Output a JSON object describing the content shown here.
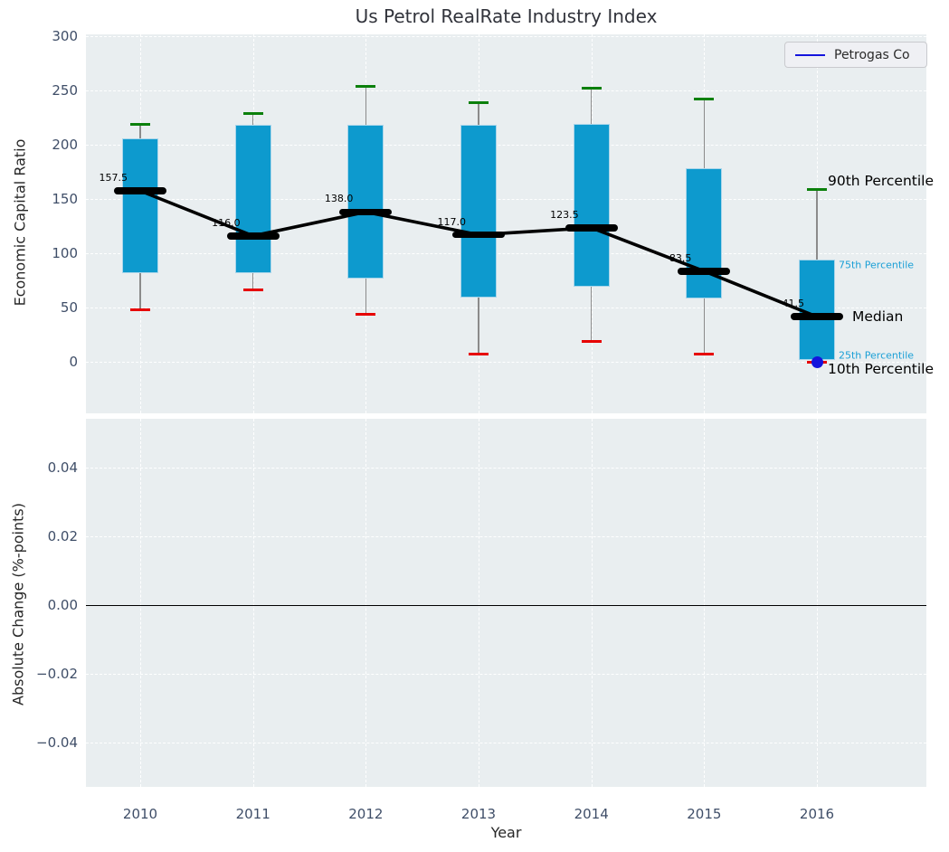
{
  "title": "Us Petrol RealRate Industry Index",
  "legend": {
    "label": "Petrogas Co"
  },
  "top_axis": {
    "ylabel": "Economic Capital Ratio",
    "ytick_labels": [
      "0",
      "50",
      "100",
      "150",
      "200",
      "250",
      "300"
    ],
    "yticks": [
      0,
      50,
      100,
      150,
      200,
      250,
      300
    ]
  },
  "bottom_axis": {
    "ylabel": "Absolute Change (%-points)",
    "xlabel": "Year",
    "ytick_labels": [
      "0.04",
      "0.02",
      "0.00",
      "−0.02",
      "−0.04"
    ],
    "yticks": [
      0.04,
      0.02,
      0,
      -0.02,
      -0.04
    ]
  },
  "annotations": {
    "p90": "90th Percentile",
    "p75": "75th Percentile",
    "median": "Median",
    "p25": "25th Percentile",
    "p10": "10th Percentile"
  },
  "chart_data": {
    "type": "boxplot-timeseries",
    "title": "Us Petrol RealRate Industry Index",
    "xlabel": "Year",
    "ylabel_top": "Economic Capital Ratio",
    "ylabel_bottom": "Absolute Change (%-points)",
    "categories": [
      "2010",
      "2011",
      "2012",
      "2013",
      "2014",
      "2015",
      "2016"
    ],
    "series": [
      {
        "name": "90th Percentile",
        "values": [
          219,
          229,
          254,
          239,
          252,
          242,
          159
        ]
      },
      {
        "name": "75th Percentile",
        "values": [
          206,
          218,
          218,
          218,
          219,
          178,
          94
        ]
      },
      {
        "name": "Median",
        "values": [
          157.5,
          116,
          138,
          117,
          123.5,
          83.5,
          41.5
        ]
      },
      {
        "name": "25th Percentile",
        "values": [
          82,
          82,
          77,
          59,
          69,
          58,
          2
        ]
      },
      {
        "name": "10th Percentile",
        "values": [
          48,
          66,
          44,
          7,
          19,
          7,
          0
        ]
      }
    ],
    "median_labels": [
      "157.5",
      "116.0",
      "138.0",
      "117.0",
      "123.5",
      "83.5",
      "41.5"
    ],
    "petrogas_point": {
      "category": "2016",
      "value": 0,
      "series": "Petrogas Co"
    },
    "top_ylim": [
      -48,
      302
    ],
    "bottom_ylim": [
      -0.054,
      0.054
    ],
    "bottom_panel": "empty, zero reference line only",
    "grid": true,
    "legend_position": "upper right"
  },
  "colors": {
    "box_fill": "#0d9ace",
    "box_edge": "#a9d5ea",
    "cap_high": "#0b800b",
    "cap_low": "#e60000",
    "median": "#000000",
    "whisker": "#8b8b8b",
    "petrogas_blue": "#1414dd",
    "plot_bg": "#e9eef0",
    "grid": "#ffffff",
    "tick_text": "#3f4e68",
    "cyan_annotation": "#1a9fd6"
  }
}
